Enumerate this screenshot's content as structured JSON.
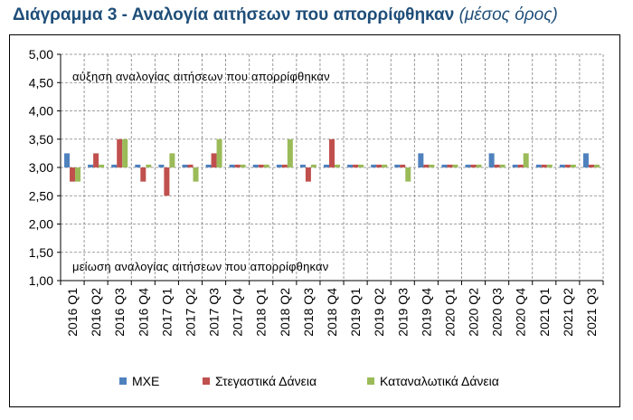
{
  "title": "Διάγραμμα 3 - Αναλογία αιτήσεων που απορρίφθηκαν",
  "subtitle": "(μέσος όρος)",
  "chart_data": {
    "type": "bar",
    "categories": [
      "2016 Q1",
      "2016 Q2",
      "2016 Q3",
      "2016 Q4",
      "2017 Q1",
      "2017 Q2",
      "2017 Q3",
      "2017 Q4",
      "2018 Q1",
      "2018 Q2",
      "2018 Q3",
      "2018 Q4",
      "2019 Q1",
      "2019 Q2",
      "2019 Q3",
      "2019 Q4",
      "2020 Q1",
      "2020 Q2",
      "2020 Q3",
      "2020 Q4",
      "2021 Q1",
      "2021 Q2",
      "2021 Q3"
    ],
    "series": [
      {
        "name": "ΜΧΕ",
        "color": "#4f81bd",
        "values": [
          3.25,
          3.05,
          3.05,
          3.05,
          3.05,
          3.05,
          3.05,
          3.05,
          3.05,
          3.05,
          3.05,
          3.05,
          3.05,
          3.05,
          3.05,
          3.25,
          3.05,
          3.05,
          3.25,
          3.05,
          3.05,
          3.05,
          3.25
        ]
      },
      {
        "name": "Στεγαστικά Δάνεια",
        "color": "#c0504d",
        "values": [
          2.75,
          3.25,
          3.5,
          2.75,
          2.5,
          3.05,
          3.25,
          3.05,
          3.05,
          3.05,
          2.75,
          3.5,
          3.05,
          3.05,
          3.05,
          3.05,
          3.05,
          3.05,
          3.05,
          3.05,
          3.05,
          3.05,
          3.05
        ]
      },
      {
        "name": "Καταναλωτικά Δάνεια",
        "color": "#9bbb59",
        "values": [
          2.75,
          3.05,
          3.5,
          3.05,
          3.25,
          2.75,
          3.5,
          3.05,
          3.05,
          3.5,
          3.05,
          3.05,
          3.05,
          3.05,
          2.75,
          3.05,
          3.05,
          3.05,
          3.05,
          3.25,
          3.05,
          3.05,
          3.05
        ]
      }
    ],
    "yticks": [
      "1,00",
      "1,50",
      "2,00",
      "2,50",
      "3,00",
      "3,50",
      "4,00",
      "4,50",
      "5,00"
    ],
    "ylim": [
      1,
      5
    ],
    "baseline": 3,
    "grid": true,
    "annotations": {
      "top": "αύξηση αναλογίας αιτήσεων που απορρίφθηκαν",
      "bottom": "μείωση αναλογίας αιτήσεων που απορρίφθηκαν"
    },
    "legend_position": "bottom"
  }
}
